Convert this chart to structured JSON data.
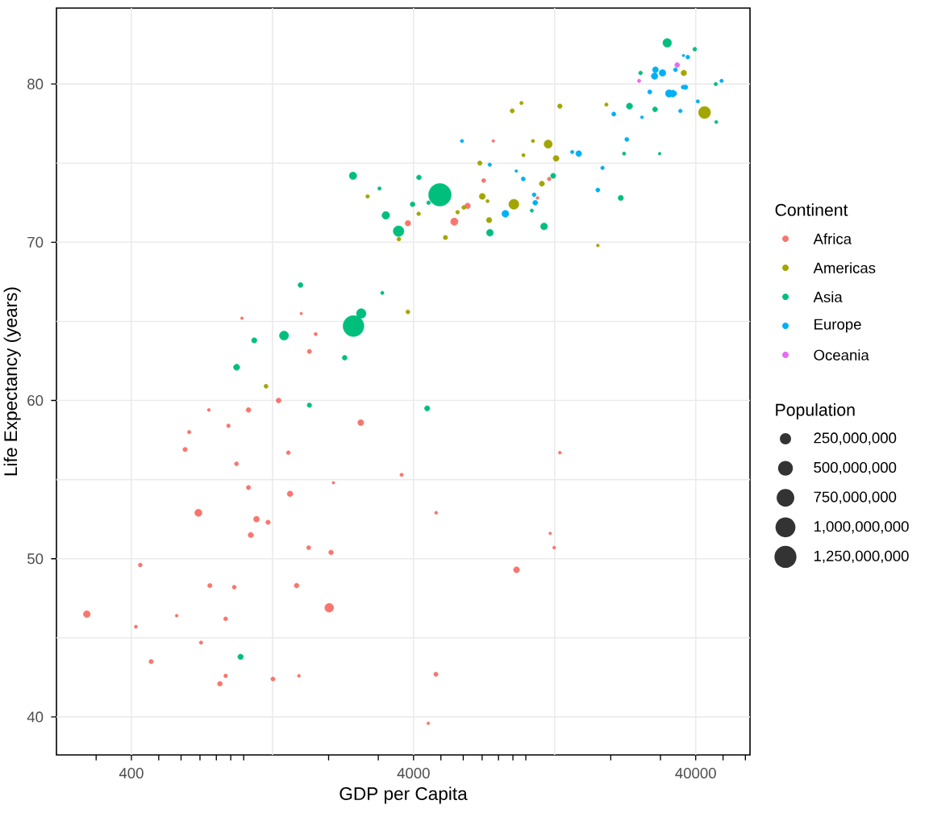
{
  "chart_data": {
    "type": "bubble",
    "xlabel": "GDP per Capita",
    "ylabel": "Life Expectancy (years)",
    "legend_title": [
      "Continent",
      "Population"
    ],
    "log": "x",
    "grid": true,
    "legend": "right",
    "marker": "circle",
    "xlim": [
      217,
      62300
    ],
    "ylim": [
      37.6,
      84.8
    ],
    "xticks": [
      {
        "value": 300,
        "label": null
      },
      400,
      {
        "value": 500,
        "label": null
      },
      {
        "value": 600,
        "label": null
      },
      {
        "value": 700,
        "label": null
      },
      {
        "value": 800,
        "label": null
      },
      {
        "value": 900,
        "label": null
      },
      {
        "value": 1000,
        "label": null
      },
      {
        "value": 2000,
        "label": null
      },
      {
        "value": 3000,
        "label": null
      },
      4000,
      {
        "value": 5000,
        "label": null
      },
      {
        "value": 6000,
        "label": null
      },
      {
        "value": 7000,
        "label": null
      },
      {
        "value": 8000,
        "label": null
      },
      {
        "value": 9000,
        "label": null
      },
      {
        "value": 10000,
        "label": null
      },
      {
        "value": 20000,
        "label": null
      },
      {
        "value": 30000,
        "label": null
      },
      40000,
      {
        "value": 50000,
        "label": null
      },
      {
        "value": 60000,
        "label": null
      }
    ],
    "yticks": [
      40,
      50,
      60,
      70,
      80
    ],
    "size_legend": [
      {
        "value": 250000000,
        "label": "250,000,000"
      },
      {
        "value": 500000000,
        "label": "500,000,000"
      },
      {
        "value": 750000000,
        "label": "750,000,000"
      },
      {
        "value": 1000000000,
        "label": "1,000,000,000"
      },
      {
        "value": 1250000000,
        "label": "1,250,000,000"
      }
    ],
    "series": [
      {
        "name": "Africa",
        "color": "#f8766d",
        "x": [
          6220,
          4800,
          1440,
          12600,
          1220,
          430,
          2040,
          706,
          1700,
          986,
          278,
          3630,
          1540,
          2080,
          5580,
          12200,
          641,
          691,
          13200,
          753,
          1330,
          943,
          579,
          1460,
          1570,
          415,
          12100,
          1040,
          759,
          1040,
          1800,
          11000,
          3820,
          824,
          4810,
          620,
          2010,
          7670,
          863,
          1600,
          1710,
          863,
          926,
          9270,
          2600,
          4510,
          1110,
          883,
          7090,
          1060,
          1270,
          470
        ],
        "values": [
          72.3,
          42.7,
          56.7,
          50.7,
          52.3,
          49.6,
          50.4,
          44.7,
          50.7,
          65.2,
          46.5,
          55.3,
          48.3,
          54.8,
          71.3,
          51.6,
          58.0,
          52.9,
          56.7,
          59.4,
          60.0,
          56.0,
          46.4,
          54.1,
          42.6,
          45.7,
          74.0,
          59.4,
          48.3,
          54.5,
          64.2,
          72.8,
          71.2,
          42.1,
          52.9,
          56.9,
          46.9,
          76.4,
          46.2,
          65.5,
          63.1,
          42.6,
          48.2,
          49.3,
          58.6,
          39.6,
          52.5,
          58.4,
          73.9,
          51.5,
          42.4,
          43.5
        ],
        "sizes": [
          33000000,
          12000000,
          8100000,
          1600000,
          14000000,
          8400000,
          18000000,
          4400000,
          10000000,
          710000,
          65000000,
          3800000,
          18000000,
          500000,
          80000000,
          550000,
          4900000,
          77000000,
          1500000,
          1700000,
          23000000,
          9900000,
          1500000,
          36000000,
          2000000,
          3200000,
          6000000,
          19000000,
          13000000,
          12000000,
          3300000,
          1300000,
          34000000,
          20000000,
          2100000,
          13000000,
          135000000,
          800000,
          8900000,
          200000,
          12000000,
          6100000,
          9100000,
          44000000,
          42000000,
          1100000,
          38000000,
          5700000,
          10000000,
          29000000,
          12000000,
          12000000
        ]
      },
      {
        "name": "Americas",
        "color": "#a3a500",
        "x": [
          12800,
          3820,
          9070,
          36300,
          13200,
          7010,
          9650,
          8950,
          6030,
          6870,
          5730,
          5190,
          1200,
          3550,
          7320,
          12000,
          2750,
          9810,
          4170,
          7410,
          19300,
          18000,
          43000,
          10600,
          11400
        ],
        "values": [
          75.3,
          65.6,
          72.4,
          80.7,
          78.6,
          72.9,
          78.8,
          78.3,
          72.2,
          75.0,
          71.9,
          70.3,
          60.9,
          70.2,
          72.6,
          76.2,
          72.9,
          75.5,
          71.8,
          71.4,
          78.7,
          69.8,
          78.2,
          76.4,
          73.7
        ],
        "sizes": [
          40000000,
          9100000,
          190000000,
          33000000,
          16000000,
          44000000,
          4100000,
          11000000,
          9300000,
          14000000,
          6900000,
          13000000,
          8500000,
          7500000,
          2800000,
          109000000,
          5700000,
          3200000,
          6700000,
          29000000,
          3900000,
          1100000,
          301000000,
          3400000,
          26000000
        ]
      },
      {
        "name": "Asia",
        "color": "#00bf7d",
        "x": [
          975,
          29800,
          1390,
          1710,
          4960,
          39700,
          2450,
          3540,
          11600,
          4470,
          25500,
          31700,
          4520,
          1590,
          23300,
          47300,
          10500,
          12500,
          3100,
          944,
          1090,
          22300,
          2610,
          3190,
          21700,
          47100,
          3970,
          4180,
          28700,
          7460,
          2440,
          3030,
          2280
        ],
        "values": [
          43.8,
          75.6,
          64.1,
          59.7,
          73.0,
          82.2,
          64.7,
          70.7,
          71.0,
          59.5,
          80.7,
          82.6,
          72.5,
          67.3,
          78.6,
          77.6,
          72.0,
          74.2,
          66.8,
          62.1,
          63.8,
          75.6,
          65.5,
          71.7,
          72.8,
          80.0,
          72.4,
          74.1,
          78.4,
          70.6,
          74.2,
          73.4,
          62.7
        ],
        "sizes": [
          32000000,
          710000,
          150000000,
          14000000,
          1320000000,
          7000000,
          1110000000,
          224000000,
          69000000,
          27000000,
          6400000,
          127000000,
          6100000,
          23000000,
          49000000,
          2500000,
          3900000,
          25000000,
          2900000,
          48000000,
          29000000,
          3200000,
          169000000,
          91000000,
          28000000,
          4600000,
          20000000,
          19000000,
          23000000,
          65000000,
          85000000,
          4000000,
          22000000
        ]
      },
      {
        "name": "Europe",
        "color": "#00b0f6",
        "x": [
          5940,
          36100,
          33700,
          7450,
          10700,
          14600,
          22800,
          35300,
          33200,
          30500,
          32200,
          27500,
          18000,
          36200,
          40700,
          28600,
          9250,
          36800,
          49400,
          15400,
          20500,
          10800,
          9790,
          18700,
          25800,
          28800,
          33900,
          37500,
          8460,
          33200
        ],
        "values": [
          76.4,
          79.8,
          79.4,
          74.9,
          73.0,
          75.7,
          76.5,
          78.3,
          79.3,
          80.7,
          79.4,
          79.5,
          73.3,
          81.8,
          78.9,
          80.5,
          74.5,
          79.8,
          80.2,
          75.6,
          78.1,
          72.5,
          74.0,
          74.7,
          77.9,
          80.9,
          80.9,
          81.7,
          71.8,
          79.4
        ],
        "sizes": [
          3600000,
          8200000,
          10000000,
          4600000,
          7300000,
          4500000,
          10000000,
          5500000,
          5200000,
          61000000,
          82000000,
          11000000,
          10000000,
          300000,
          4100000,
          58000000,
          680000,
          17000000,
          4600000,
          39000000,
          11000000,
          22000000,
          10000000,
          5400000,
          2000000,
          40000000,
          9000000,
          7600000,
          71000000,
          61000000
        ]
      },
      {
        "name": "Oceania",
        "color": "#e76bf3",
        "x": [
          34400,
          25200
        ],
        "values": [
          81.2,
          80.2
        ],
        "sizes": [
          20000000,
          4100000
        ]
      }
    ]
  }
}
